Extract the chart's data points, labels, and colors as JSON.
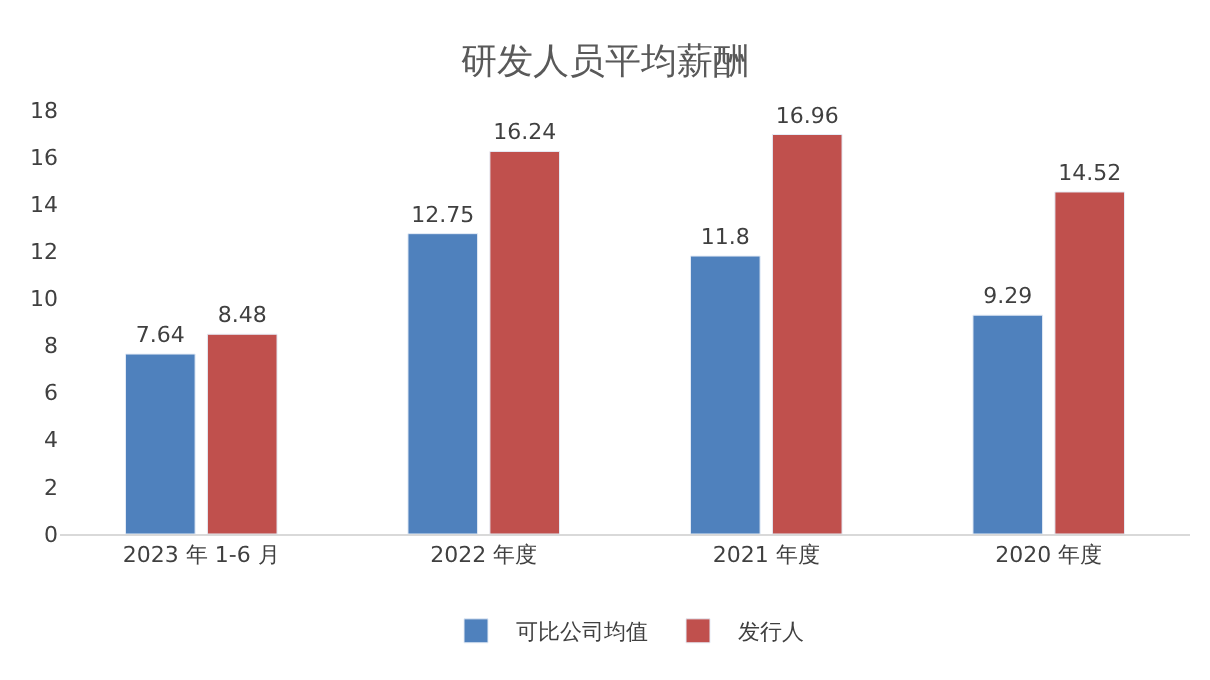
{
  "chart_data": {
    "type": "bar",
    "title": "研发人员平均薪酬",
    "categories": [
      "2023 年 1-6 月",
      "2022 年度",
      "2021 年度",
      "2020 年度"
    ],
    "series": [
      {
        "name": "可比公司均值",
        "color": "#4f81bd",
        "values": [
          7.64,
          12.75,
          11.8,
          9.29
        ]
      },
      {
        "name": "发行人",
        "color": "#c0504d",
        "values": [
          8.48,
          16.24,
          16.96,
          14.52
        ]
      }
    ],
    "ylim": [
      0,
      18
    ],
    "yticks": [
      0,
      2,
      4,
      6,
      8,
      10,
      12,
      14,
      16,
      18
    ],
    "data_labels": true,
    "legend": "bottom",
    "grid": false
  }
}
